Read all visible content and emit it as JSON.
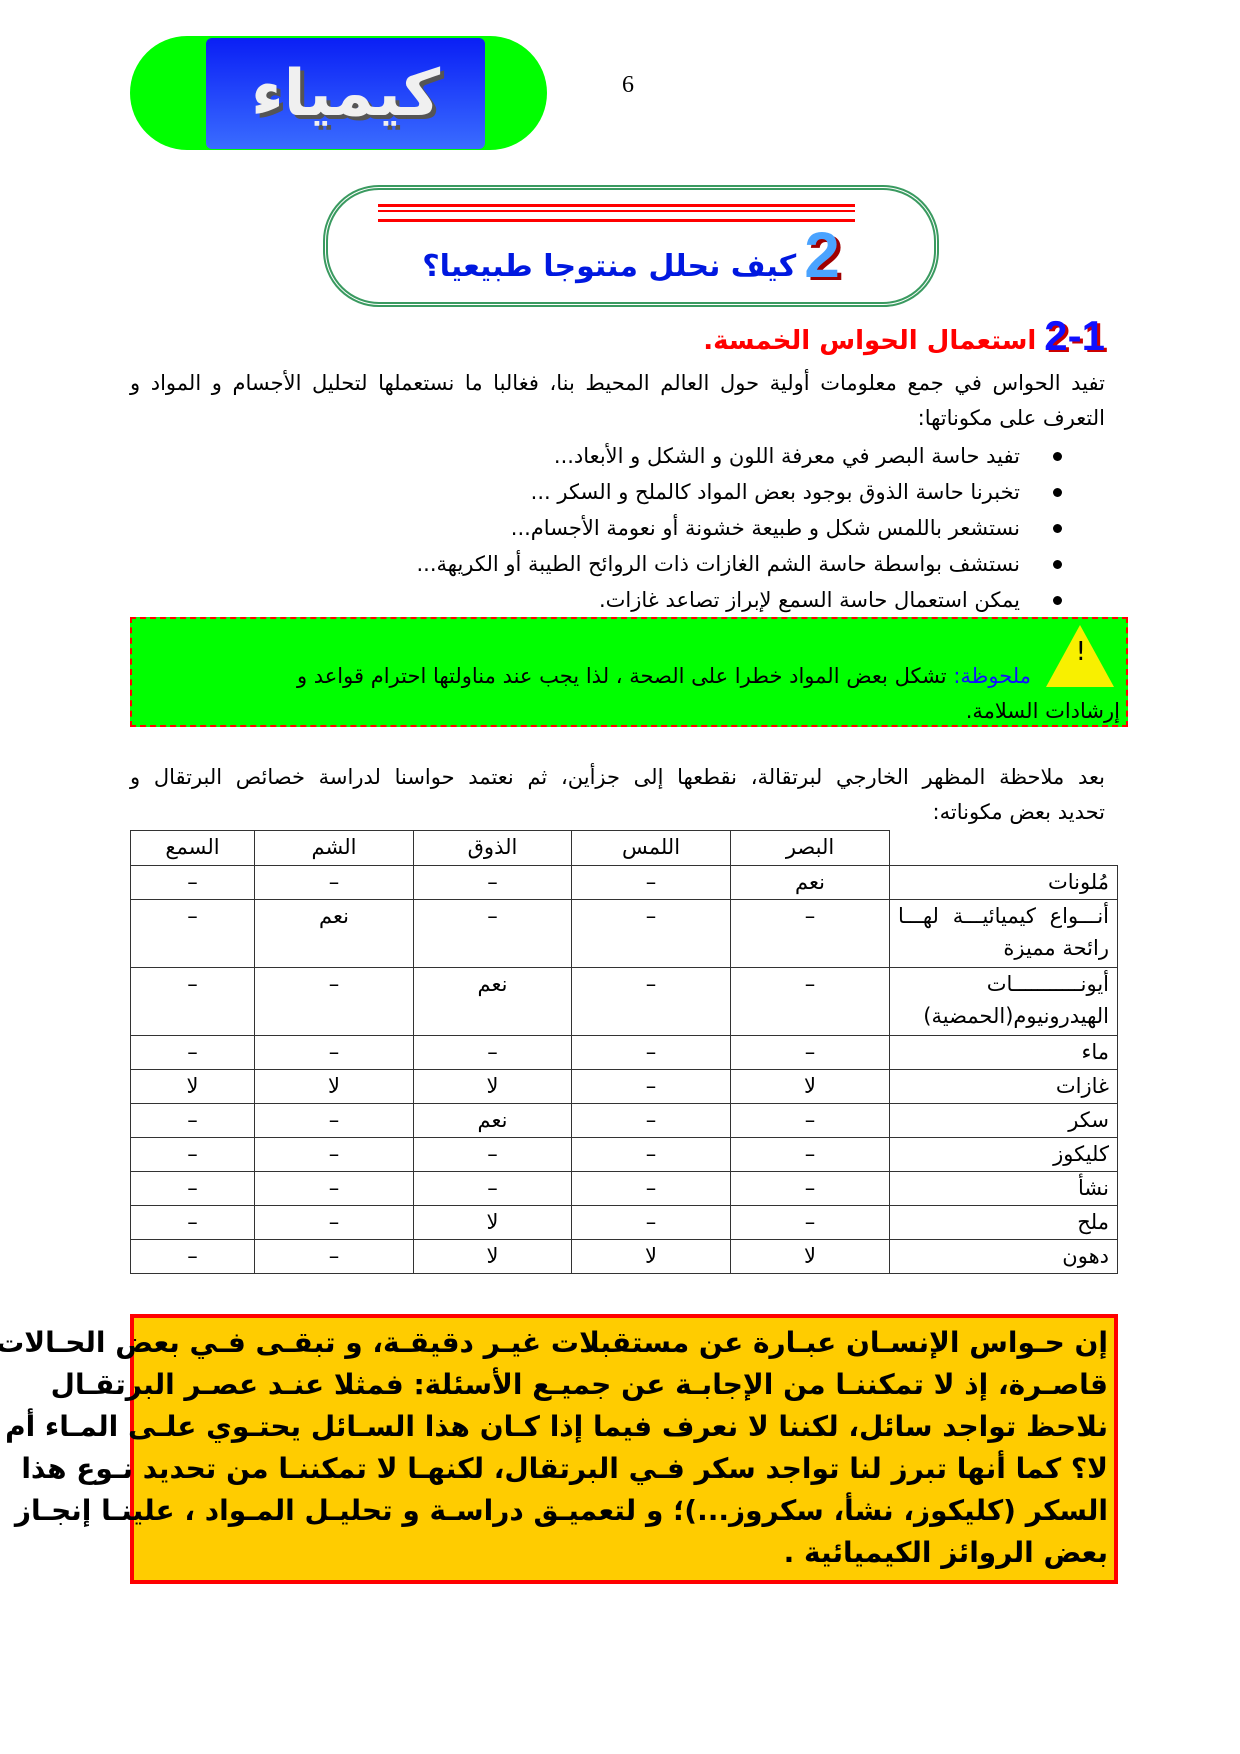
{
  "header": {
    "logo_text": "كيمياء",
    "page_number": "6"
  },
  "title": {
    "number": "2",
    "text": "كيف نحلل منتوجا طبيعيا؟"
  },
  "section": {
    "number": "2-1",
    "heading": "استعمال الحواس الخمسة.",
    "intro_lines": [
      "تفيد الحواس في جمع معلومات أولية حول العالم المحيط بنا، فغالبا ما نستعملها لتحليل الأجسام  و المواد و",
      "التعرف على مكوناتها:"
    ],
    "bullets": [
      "تفيد حاسة البصر في معرفة اللون و الشكل و الأبعاد...",
      "تخبرنا حاسة الذوق بوجود بعض المواد كالملح و السكر ...",
      "نستشعر باللمس شكل و طبيعة خشونة أو نعومة الأجسام...",
      "نستشف بواسطة حاسة الشم الغازات ذات الروائح الطيبة أو الكريهة...",
      "يمكن استعمال حاسة السمع لإبراز تصاعد غازات."
    ]
  },
  "note": {
    "icon": "warning-triangle-icon",
    "label": "ملحوظة:",
    "text": "تشكل بعض المواد خطرا على الصحة ، لذا يجب عند مناولتها احترام قواعد و",
    "text_line2": "إرشادات السلامة."
  },
  "observation_lines": [
    "بعد ملاحظة المظهر الخارجي لبرتقالة، نقطعها إلى جزأين، ثم نعتمد حواسنا لدراسة خصائص البرتقال و",
    "تحديد بعض مكوناته:"
  ],
  "table": {
    "headers": [
      "",
      "البصر",
      "اللمس",
      "الذوق",
      "الشم",
      "السمع"
    ],
    "rows": [
      [
        "مُلونات",
        "نعم",
        "–",
        "–",
        "–",
        "–"
      ],
      [
        "أنـــواع كيميائيـــة لهـــا رائحة مميزة",
        "–",
        "–",
        "–",
        "نعم",
        "–"
      ],
      [
        "أيونـــــــــــات الهيدرونيوم(الحمضية)",
        "–",
        "–",
        "نعم",
        "–",
        "–"
      ],
      [
        "ماء",
        "–",
        "–",
        "–",
        "–",
        "–"
      ],
      [
        "غازات",
        "لا",
        "–",
        "لا",
        "لا",
        "لا"
      ],
      [
        "سكر",
        "–",
        "–",
        "نعم",
        "–",
        "–"
      ],
      [
        "كليكوز",
        "–",
        "–",
        "–",
        "–",
        "–"
      ],
      [
        "نشأ",
        "–",
        "–",
        "–",
        "–",
        "–"
      ],
      [
        "ملح",
        "–",
        "–",
        "لا",
        "–",
        "–"
      ],
      [
        "دهون",
        "لا",
        "لا",
        "لا",
        "–",
        "–"
      ]
    ]
  },
  "summary_lines": [
    "إن حـواس الإنسـان عبـارة عن مستقبلات غيـر دقيقـة، و تبقـى فـي بعض الحـالات",
    "قاصـرة، إذ  لا تمكننـا من الإجابـة عن جميـع الأسئلة: فمثلا  عنـد عصـر البرتقـال",
    "نلاحظ تواجد  سائل، لكننا لا نعرف فيما إذا كـان هذا  السـائل يحتـوي علـى المـاء أم",
    "لا؟ كما أنها تبرز لنا تواجد سكر فـي البرتقال، لكنهـا لا تمكننـا من تحديد  نـوع هذا",
    "السكر (كليكوز، نشأ، سكروز...)؛ و لتعميـق دراسـة و تحليـل المـواد ، علينـا إنجـاز",
    "بعض الروائز الكيميائية ."
  ],
  "colors": {
    "logo_pill": "#00ff00",
    "logo_box": "#2a55ff",
    "title_text": "#0018e0",
    "heading_text": "#ff0000",
    "note_bg": "#00ff00",
    "note_border": "#ff0000",
    "summary_bg": "#ffcc00",
    "summary_border": "#ff0000"
  }
}
